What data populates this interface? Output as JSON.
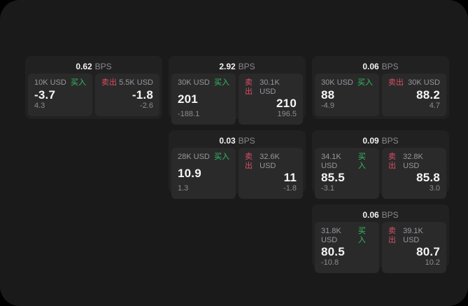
{
  "labels": {
    "buy": "买入",
    "sell": "卖出",
    "bps_unit": "BPS"
  },
  "colors": {
    "background": "#000000",
    "window": "#1a1a1b",
    "card": "#212122",
    "panel": "#2a2a2b",
    "buy_green": "#32c060",
    "sell_red": "#d94f63",
    "text_primary": "#f5f5f5",
    "text_secondary": "#98989d"
  },
  "cards": [
    {
      "row": 1,
      "col": 1,
      "bps": "0.62",
      "buy": {
        "amount": "10K USD",
        "value": "-3.7",
        "delta": "4.3"
      },
      "sell": {
        "amount": "5.5K USD",
        "value": "-1.8",
        "delta": "-2.6"
      }
    },
    {
      "row": 1,
      "col": 2,
      "bps": "2.92",
      "buy": {
        "amount": "30K USD",
        "value": "201",
        "delta": "-188.1"
      },
      "sell": {
        "amount": "30.1K USD",
        "value": "210",
        "delta": "196.5"
      }
    },
    {
      "row": 1,
      "col": 3,
      "bps": "0.06",
      "buy": {
        "amount": "30K USD",
        "value": "88",
        "delta": "-4.9"
      },
      "sell": {
        "amount": "30K USD",
        "value": "88.2",
        "delta": "4.7"
      }
    },
    {
      "row": 2,
      "col": 2,
      "bps": "0.03",
      "buy": {
        "amount": "28K USD",
        "value": "10.9",
        "delta": "1.3"
      },
      "sell": {
        "amount": "32.6K USD",
        "value": "11",
        "delta": "-1.8"
      }
    },
    {
      "row": 2,
      "col": 3,
      "bps": "0.09",
      "buy": {
        "amount": "34.1K USD",
        "value": "85.5",
        "delta": "-3.1"
      },
      "sell": {
        "amount": "32.8K USD",
        "value": "85.8",
        "delta": "3.0"
      }
    },
    {
      "row": 3,
      "col": 3,
      "bps": "0.06",
      "buy": {
        "amount": "31.8K USD",
        "value": "80.5",
        "delta": "-10.8"
      },
      "sell": {
        "amount": "39.1K USD",
        "value": "80.7",
        "delta": "10.2"
      }
    }
  ]
}
